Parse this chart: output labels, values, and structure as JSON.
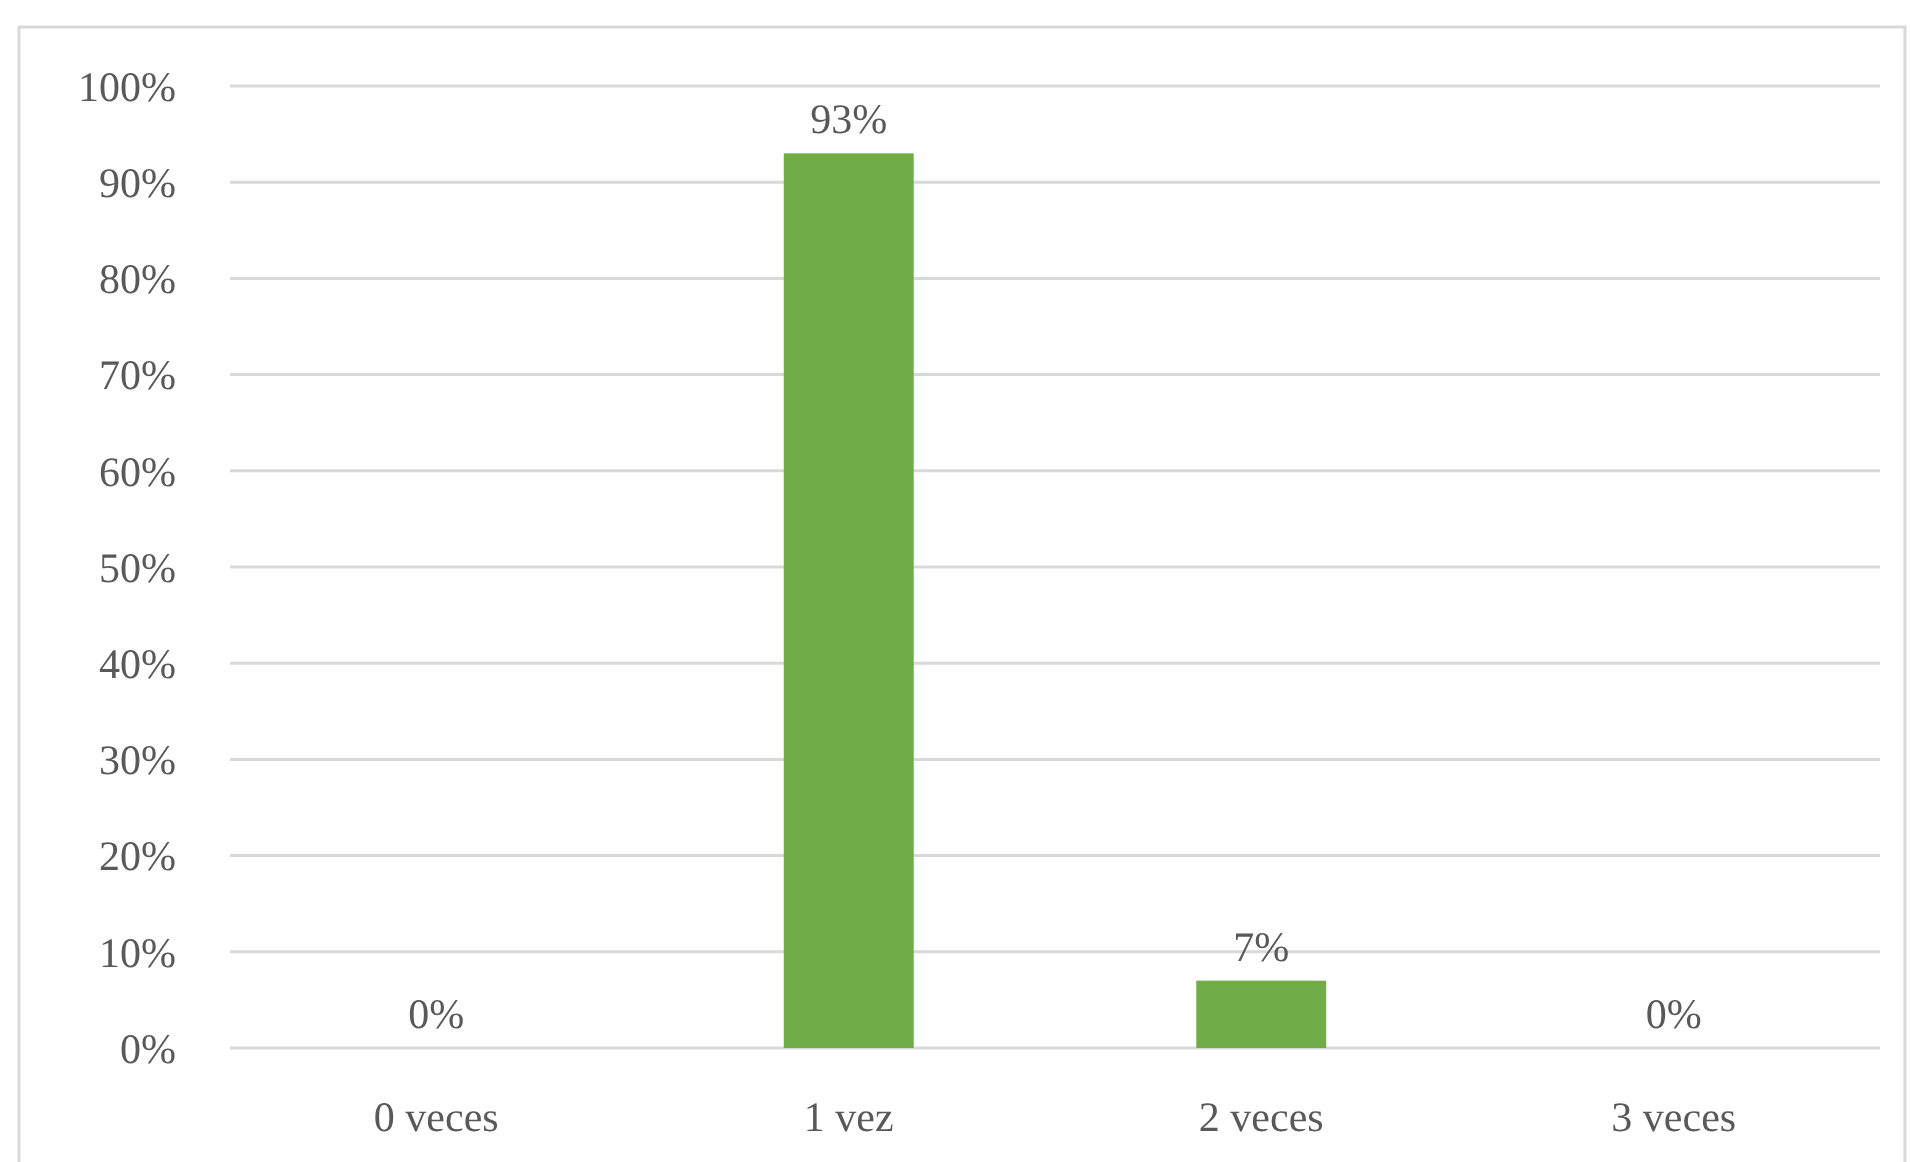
{
  "chart_data": {
    "type": "bar",
    "categories": [
      "0 veces",
      "1 vez",
      "2 veces",
      "3 veces"
    ],
    "values": [
      0,
      93,
      7,
      0
    ],
    "color": "#70ad47",
    "value_labels": [
      "0%",
      "93%",
      "7%",
      "0%"
    ],
    "ylim": [
      0,
      100
    ],
    "yticks": [
      {
        "value": 0,
        "label": "0%"
      },
      {
        "value": 10,
        "label": "10%"
      },
      {
        "value": 20,
        "label": "20%"
      },
      {
        "value": 30,
        "label": "30%"
      },
      {
        "value": 40,
        "label": "40%"
      },
      {
        "value": 50,
        "label": "50%"
      },
      {
        "value": 60,
        "label": "60%"
      },
      {
        "value": 70,
        "label": "70%"
      },
      {
        "value": 80,
        "label": "80%"
      },
      {
        "value": 90,
        "label": "90%"
      },
      {
        "value": 100,
        "label": "100%"
      }
    ],
    "grid": "y"
  }
}
